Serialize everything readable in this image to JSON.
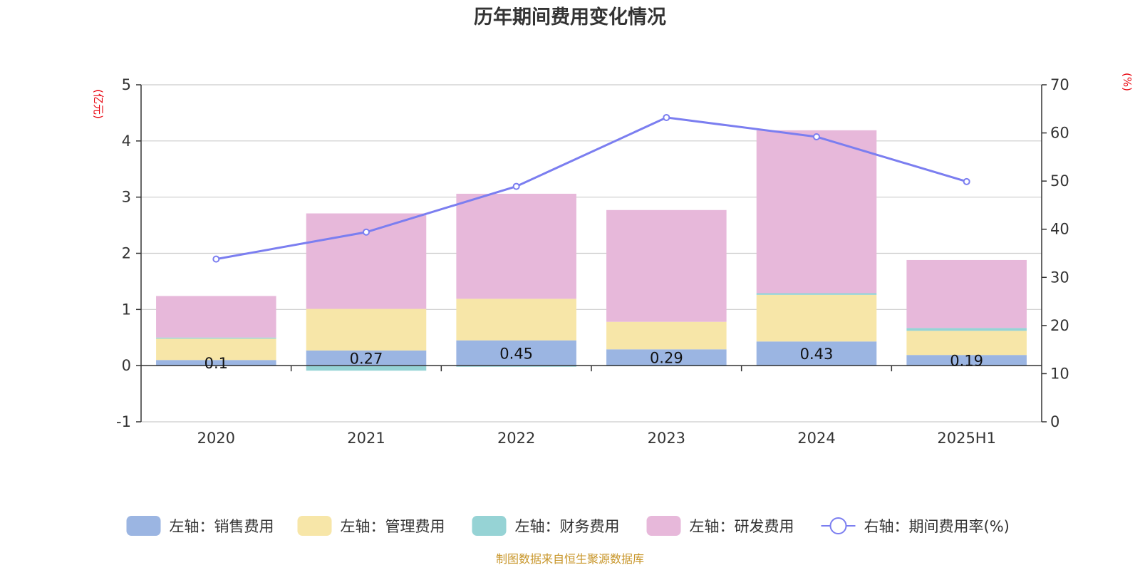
{
  "title": "历年期间费用变化情况",
  "source": "制图数据来自恒生聚源数据库",
  "chart_data": {
    "type": "bar",
    "stacked": true,
    "categories": [
      "2020",
      "2021",
      "2022",
      "2023",
      "2024",
      "2025H1"
    ],
    "left_axis": {
      "unit": "(亿元)",
      "ylim": [
        -1,
        5
      ],
      "ticks": [
        "5",
        "4",
        "3",
        "2",
        "1",
        "0",
        "-1"
      ]
    },
    "right_axis": {
      "unit": "(%)",
      "ylim": [
        0,
        70
      ],
      "ticks": [
        "70",
        "60",
        "50",
        "40",
        "30",
        "20",
        "10",
        "0"
      ]
    },
    "grid": true,
    "legend_position": "bottom",
    "series": [
      {
        "name": "左轴：销售费用",
        "axis": "left",
        "color": "#9bb5e2",
        "values": [
          0.1,
          0.27,
          0.45,
          0.29,
          0.43,
          0.19
        ],
        "labels": [
          "0.1",
          "0.27",
          "0.45",
          "0.29",
          "0.43",
          "0.19"
        ]
      },
      {
        "name": "左轴：管理费用",
        "axis": "left",
        "color": "#f7e6a8",
        "values": [
          0.38,
          0.74,
          0.74,
          0.49,
          0.83,
          0.43
        ]
      },
      {
        "name": "左轴：财务费用",
        "axis": "left",
        "color": "#96d3d5",
        "values": [
          0.02,
          -0.09,
          -0.02,
          -0.01,
          0.03,
          0.05
        ]
      },
      {
        "name": "左轴：研发费用",
        "axis": "left",
        "color": "#e7b8da",
        "values": [
          0.74,
          1.7,
          1.87,
          1.99,
          2.9,
          1.21
        ]
      },
      {
        "name": "右轴：期间费用率(%)",
        "axis": "right",
        "type": "line",
        "color": "#7b7ef0",
        "values": [
          33.8,
          39.4,
          48.9,
          63.2,
          59.2,
          49.9
        ]
      }
    ]
  }
}
